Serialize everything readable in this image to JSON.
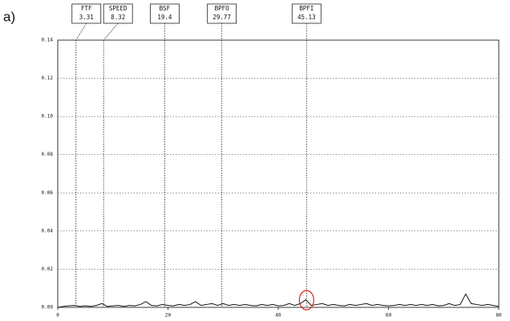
{
  "figure_label": "a)",
  "chart_data": {
    "type": "line",
    "markers": [
      {
        "label": "FTF",
        "value": 3.31
      },
      {
        "label": "SPEED",
        "value": 8.32
      },
      {
        "label": "BSF",
        "value": 19.4
      },
      {
        "label": "BPFO",
        "value": 29.77
      },
      {
        "label": "BPFI",
        "value": 45.13
      }
    ],
    "x": [
      0,
      1,
      2,
      3,
      4,
      5,
      6,
      7,
      8,
      9,
      10,
      11,
      12,
      13,
      14,
      15,
      16,
      17,
      18,
      19,
      20,
      21,
      22,
      23,
      24,
      25,
      26,
      27,
      28,
      29,
      30,
      31,
      32,
      33,
      34,
      35,
      36,
      37,
      38,
      39,
      40,
      41,
      42,
      43,
      44,
      45,
      46,
      47,
      48,
      49,
      50,
      51,
      52,
      53,
      54,
      55,
      56,
      57,
      58,
      59,
      60,
      61,
      62,
      63,
      64,
      65,
      66,
      67,
      68,
      69,
      70,
      71,
      72,
      73,
      74,
      75,
      76,
      77,
      78,
      79,
      80
    ],
    "series": [
      {
        "color": "#111111",
        "values": [
          0.0,
          0.0005,
          0.0008,
          0.001,
          0.0005,
          0.0008,
          0.0005,
          0.001,
          0.002,
          0.0005,
          0.0008,
          0.001,
          0.0005,
          0.001,
          0.0008,
          0.0015,
          0.003,
          0.001,
          0.0008,
          0.0015,
          0.001,
          0.0008,
          0.0015,
          0.001,
          0.0015,
          0.003,
          0.001,
          0.0015,
          0.002,
          0.001,
          0.002,
          0.001,
          0.0015,
          0.001,
          0.0015,
          0.001,
          0.0008,
          0.0015,
          0.001,
          0.0015,
          0.0008,
          0.001,
          0.002,
          0.001,
          0.002,
          0.004,
          0.001,
          0.0015,
          0.002,
          0.001,
          0.0015,
          0.001,
          0.0008,
          0.0015,
          0.001,
          0.0015,
          0.002,
          0.001,
          0.0015,
          0.001,
          0.0008,
          0.001,
          0.0015,
          0.001,
          0.0015,
          0.001,
          0.0015,
          0.001,
          0.0015,
          0.0008,
          0.001,
          0.002,
          0.001,
          0.0015,
          0.007,
          0.002,
          0.0015,
          0.001,
          0.0015,
          0.001,
          0.0005
        ]
      }
    ],
    "xlim": [
      0,
      80
    ],
    "xticks": [
      0,
      20,
      40,
      60,
      80
    ],
    "ylim": [
      0,
      0.14
    ],
    "yticks": [
      {
        "value": 0,
        "label": "0.00"
      },
      0.02,
      0.04,
      0.06,
      0.08,
      {
        "value": 0.1,
        "label": "0.10"
      },
      0.12,
      0.14
    ],
    "grid": true
  }
}
